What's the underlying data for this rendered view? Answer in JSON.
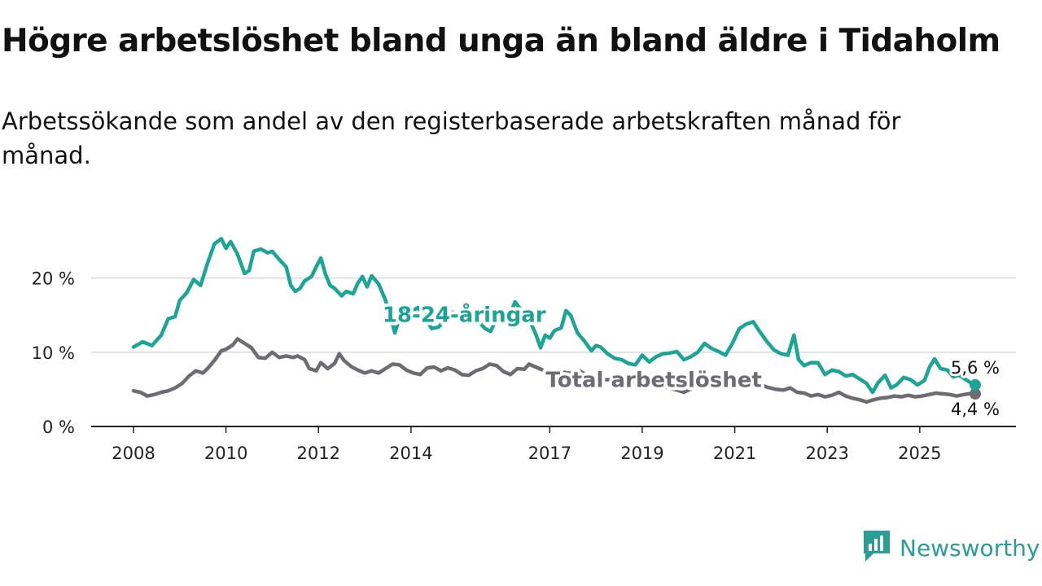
{
  "header": {
    "title": "Högre arbetslöshet bland unga än bland äldre i Tidaholm",
    "subtitle": "Arbetssökande som andel av den registerbaserade arbetskraften månad för månad."
  },
  "brand": {
    "name": "Newsworthy",
    "icon": "newsworthy-logo-icon",
    "color": "#2a9d96"
  },
  "chart_data": {
    "type": "line",
    "title": "Högre arbetslöshet bland unga än bland äldre i Tidaholm",
    "subtitle": "Arbetssökande som andel av den registerbaserade arbetskraften månad för månad.",
    "xlabel": "",
    "ylabel": "",
    "xlim": [
      2008,
      2026.2
    ],
    "ylim": [
      0,
      25
    ],
    "yticks": [
      {
        "value": 0,
        "label": "0 %"
      },
      {
        "value": 10,
        "label": "10 %"
      },
      {
        "value": 20,
        "label": "20 %"
      }
    ],
    "xticks": [
      {
        "value": 2008,
        "label": "2008"
      },
      {
        "value": 2010,
        "label": "2010"
      },
      {
        "value": 2012,
        "label": "2012"
      },
      {
        "value": 2014,
        "label": "2014"
      },
      {
        "value": 2017,
        "label": "2017"
      },
      {
        "value": 2019,
        "label": "2019"
      },
      {
        "value": 2021,
        "label": "2021"
      },
      {
        "value": 2023,
        "label": "2023"
      },
      {
        "value": 2025,
        "label": "2025"
      }
    ],
    "grid": true,
    "series": [
      {
        "name": "18-24-åringar",
        "color": "#1aa595",
        "end_label": "5,6 %",
        "points": [
          [
            2008.0,
            10.7
          ],
          [
            2008.2,
            11.4
          ],
          [
            2008.4,
            10.9
          ],
          [
            2008.6,
            12.3
          ],
          [
            2008.75,
            14.5
          ],
          [
            2008.9,
            14.8
          ],
          [
            2009.0,
            17.0
          ],
          [
            2009.15,
            18.0
          ],
          [
            2009.3,
            19.8
          ],
          [
            2009.45,
            19.0
          ],
          [
            2009.6,
            22.0
          ],
          [
            2009.75,
            24.6
          ],
          [
            2009.9,
            25.3
          ],
          [
            2010.0,
            24.0
          ],
          [
            2010.1,
            24.9
          ],
          [
            2010.25,
            23.2
          ],
          [
            2010.4,
            20.6
          ],
          [
            2010.5,
            21.0
          ],
          [
            2010.6,
            23.6
          ],
          [
            2010.75,
            23.9
          ],
          [
            2010.9,
            23.4
          ],
          [
            2011.0,
            23.6
          ],
          [
            2011.15,
            22.5
          ],
          [
            2011.3,
            21.5
          ],
          [
            2011.4,
            19.0
          ],
          [
            2011.5,
            18.2
          ],
          [
            2011.6,
            18.6
          ],
          [
            2011.7,
            19.6
          ],
          [
            2011.85,
            20.2
          ],
          [
            2011.95,
            21.5
          ],
          [
            2012.05,
            22.7
          ],
          [
            2012.15,
            20.5
          ],
          [
            2012.25,
            19.0
          ],
          [
            2012.35,
            18.6
          ],
          [
            2012.5,
            17.6
          ],
          [
            2012.6,
            18.2
          ],
          [
            2012.75,
            17.9
          ],
          [
            2012.85,
            19.3
          ],
          [
            2012.95,
            20.2
          ],
          [
            2013.05,
            18.8
          ],
          [
            2013.15,
            20.3
          ],
          [
            2013.3,
            19.2
          ],
          [
            2013.45,
            17.0
          ],
          [
            2013.55,
            15.0
          ],
          [
            2013.65,
            12.6
          ],
          [
            2013.75,
            14.6
          ],
          [
            2013.85,
            16.2
          ],
          [
            2014.0,
            15.5
          ],
          [
            2014.15,
            16.0
          ],
          [
            2014.3,
            14.6
          ],
          [
            2014.45,
            13.2
          ],
          [
            2014.6,
            13.4
          ],
          [
            2014.75,
            14.6
          ],
          [
            2014.9,
            15.4
          ],
          [
            2015.05,
            15.0
          ],
          [
            2015.2,
            16.0
          ],
          [
            2015.35,
            15.3
          ],
          [
            2015.45,
            14.2
          ],
          [
            2015.6,
            13.2
          ],
          [
            2015.72,
            12.8
          ],
          [
            2015.85,
            14.5
          ],
          [
            2016.0,
            15.6
          ],
          [
            2016.15,
            15.2
          ],
          [
            2016.25,
            16.8
          ],
          [
            2016.4,
            15.5
          ],
          [
            2016.55,
            14.5
          ],
          [
            2016.7,
            12.4
          ],
          [
            2016.8,
            10.6
          ],
          [
            2016.9,
            12.3
          ],
          [
            2017.0,
            11.9
          ],
          [
            2017.1,
            12.9
          ],
          [
            2017.25,
            13.3
          ],
          [
            2017.35,
            15.6
          ],
          [
            2017.45,
            15.0
          ],
          [
            2017.6,
            12.6
          ],
          [
            2017.75,
            11.5
          ],
          [
            2017.9,
            10.2
          ],
          [
            2018.0,
            10.9
          ],
          [
            2018.1,
            10.7
          ],
          [
            2018.25,
            9.8
          ],
          [
            2018.4,
            9.2
          ],
          [
            2018.55,
            9.0
          ],
          [
            2018.7,
            8.5
          ],
          [
            2018.85,
            8.3
          ],
          [
            2019.0,
            9.6
          ],
          [
            2019.15,
            8.7
          ],
          [
            2019.3,
            9.4
          ],
          [
            2019.45,
            9.8
          ],
          [
            2019.6,
            9.9
          ],
          [
            2019.75,
            10.1
          ],
          [
            2019.9,
            9.0
          ],
          [
            2020.05,
            9.4
          ],
          [
            2020.2,
            10.0
          ],
          [
            2020.35,
            11.2
          ],
          [
            2020.5,
            10.5
          ],
          [
            2020.65,
            10.1
          ],
          [
            2020.8,
            9.6
          ],
          [
            2020.95,
            11.2
          ],
          [
            2021.1,
            13.2
          ],
          [
            2021.25,
            13.8
          ],
          [
            2021.4,
            14.1
          ],
          [
            2021.55,
            12.7
          ],
          [
            2021.7,
            11.4
          ],
          [
            2021.85,
            10.3
          ],
          [
            2022.0,
            9.8
          ],
          [
            2022.15,
            9.6
          ],
          [
            2022.28,
            12.3
          ],
          [
            2022.38,
            9.0
          ],
          [
            2022.5,
            8.2
          ],
          [
            2022.65,
            8.6
          ],
          [
            2022.8,
            8.6
          ],
          [
            2022.95,
            7.0
          ],
          [
            2023.1,
            7.6
          ],
          [
            2023.25,
            7.4
          ],
          [
            2023.4,
            6.8
          ],
          [
            2023.55,
            7.0
          ],
          [
            2023.7,
            6.4
          ],
          [
            2023.85,
            5.8
          ],
          [
            2023.98,
            4.6
          ],
          [
            2024.1,
            5.9
          ],
          [
            2024.25,
            6.9
          ],
          [
            2024.38,
            5.2
          ],
          [
            2024.5,
            5.6
          ],
          [
            2024.65,
            6.6
          ],
          [
            2024.8,
            6.3
          ],
          [
            2024.95,
            5.6
          ],
          [
            2025.1,
            6.2
          ],
          [
            2025.22,
            8.1
          ],
          [
            2025.32,
            9.1
          ],
          [
            2025.45,
            7.8
          ],
          [
            2025.6,
            7.6
          ],
          [
            2025.72,
            6.7
          ],
          [
            2025.85,
            6.9
          ],
          [
            2026.0,
            6.3
          ],
          [
            2026.1,
            5.9
          ],
          [
            2026.2,
            5.6
          ]
        ]
      },
      {
        "name": "Total arbetslöshet",
        "color": "#6e6b73",
        "end_label": "4,4 %",
        "points": [
          [
            2008.0,
            4.8
          ],
          [
            2008.15,
            4.6
          ],
          [
            2008.3,
            4.1
          ],
          [
            2008.45,
            4.3
          ],
          [
            2008.6,
            4.6
          ],
          [
            2008.75,
            4.8
          ],
          [
            2008.9,
            5.2
          ],
          [
            2009.05,
            5.8
          ],
          [
            2009.2,
            6.8
          ],
          [
            2009.35,
            7.5
          ],
          [
            2009.5,
            7.2
          ],
          [
            2009.6,
            7.8
          ],
          [
            2009.75,
            8.9
          ],
          [
            2009.9,
            10.2
          ],
          [
            2010.0,
            10.4
          ],
          [
            2010.15,
            11.0
          ],
          [
            2010.25,
            11.8
          ],
          [
            2010.4,
            11.2
          ],
          [
            2010.55,
            10.6
          ],
          [
            2010.7,
            9.3
          ],
          [
            2010.85,
            9.2
          ],
          [
            2011.0,
            10.0
          ],
          [
            2011.15,
            9.3
          ],
          [
            2011.3,
            9.5
          ],
          [
            2011.45,
            9.3
          ],
          [
            2011.55,
            9.5
          ],
          [
            2011.7,
            9.0
          ],
          [
            2011.8,
            7.8
          ],
          [
            2011.95,
            7.5
          ],
          [
            2012.05,
            8.6
          ],
          [
            2012.2,
            7.8
          ],
          [
            2012.35,
            8.5
          ],
          [
            2012.45,
            9.8
          ],
          [
            2012.55,
            8.9
          ],
          [
            2012.7,
            8.1
          ],
          [
            2012.85,
            7.6
          ],
          [
            2013.0,
            7.2
          ],
          [
            2013.15,
            7.5
          ],
          [
            2013.3,
            7.2
          ],
          [
            2013.45,
            7.8
          ],
          [
            2013.6,
            8.4
          ],
          [
            2013.75,
            8.3
          ],
          [
            2013.9,
            7.6
          ],
          [
            2014.05,
            7.2
          ],
          [
            2014.2,
            7.0
          ],
          [
            2014.35,
            7.9
          ],
          [
            2014.5,
            8.0
          ],
          [
            2014.65,
            7.5
          ],
          [
            2014.8,
            7.9
          ],
          [
            2014.95,
            7.6
          ],
          [
            2015.1,
            7.0
          ],
          [
            2015.25,
            6.9
          ],
          [
            2015.4,
            7.5
          ],
          [
            2015.55,
            7.8
          ],
          [
            2015.7,
            8.4
          ],
          [
            2015.85,
            8.2
          ],
          [
            2016.0,
            7.4
          ],
          [
            2016.15,
            7.0
          ],
          [
            2016.3,
            7.8
          ],
          [
            2016.45,
            7.7
          ],
          [
            2016.55,
            8.4
          ],
          [
            2016.7,
            8.0
          ],
          [
            2016.85,
            7.6
          ],
          [
            2017.0,
            7.0
          ],
          [
            2017.15,
            6.6
          ],
          [
            2017.3,
            7.3
          ],
          [
            2017.5,
            7.1
          ],
          [
            2017.65,
            7.5
          ],
          [
            2017.8,
            6.9
          ],
          [
            2017.95,
            6.6
          ],
          [
            2018.1,
            6.3
          ],
          [
            2018.3,
            6.3
          ],
          [
            2018.5,
            6.0
          ],
          [
            2018.7,
            5.9
          ],
          [
            2018.9,
            5.9
          ],
          [
            2019.1,
            5.6
          ],
          [
            2019.3,
            5.5
          ],
          [
            2019.5,
            5.3
          ],
          [
            2019.7,
            5.0
          ],
          [
            2019.9,
            4.6
          ],
          [
            2020.1,
            5.2
          ],
          [
            2020.3,
            5.6
          ],
          [
            2020.5,
            5.7
          ],
          [
            2020.7,
            5.5
          ],
          [
            2020.9,
            5.8
          ],
          [
            2021.1,
            6.1
          ],
          [
            2021.3,
            6.0
          ],
          [
            2021.5,
            5.8
          ],
          [
            2021.7,
            5.3
          ],
          [
            2021.9,
            5.0
          ],
          [
            2022.05,
            4.9
          ],
          [
            2022.2,
            5.2
          ],
          [
            2022.35,
            4.6
          ],
          [
            2022.5,
            4.5
          ],
          [
            2022.65,
            4.1
          ],
          [
            2022.8,
            4.3
          ],
          [
            2022.95,
            4.0
          ],
          [
            2023.1,
            4.2
          ],
          [
            2023.25,
            4.6
          ],
          [
            2023.4,
            4.1
          ],
          [
            2023.55,
            3.8
          ],
          [
            2023.7,
            3.6
          ],
          [
            2023.85,
            3.3
          ],
          [
            2024.0,
            3.6
          ],
          [
            2024.15,
            3.8
          ],
          [
            2024.3,
            3.9
          ],
          [
            2024.45,
            4.1
          ],
          [
            2024.6,
            4.0
          ],
          [
            2024.75,
            4.2
          ],
          [
            2024.9,
            4.0
          ],
          [
            2025.05,
            4.1
          ],
          [
            2025.2,
            4.3
          ],
          [
            2025.35,
            4.5
          ],
          [
            2025.5,
            4.4
          ],
          [
            2025.65,
            4.3
          ],
          [
            2025.8,
            4.1
          ],
          [
            2025.95,
            4.3
          ],
          [
            2026.05,
            4.4
          ],
          [
            2026.2,
            4.4
          ]
        ]
      }
    ],
    "annotations": [
      {
        "text": "18-24-åringar",
        "series": "18-24-åringar",
        "x": 2015.15,
        "y": 15.1
      },
      {
        "text": "Total arbetslöshet",
        "series": "Total arbetslöshet",
        "x": 2019.25,
        "y": 6.3
      }
    ]
  }
}
